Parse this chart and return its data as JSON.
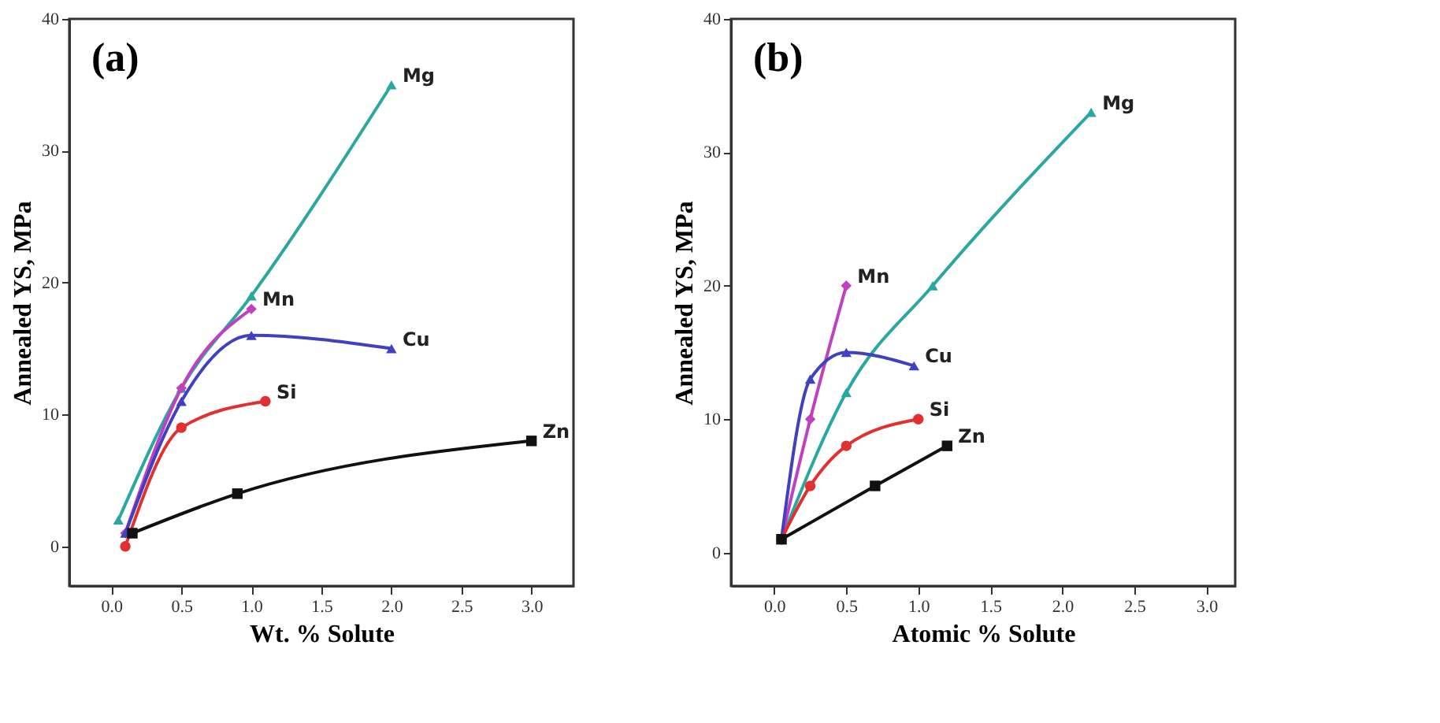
{
  "chart_data": [
    {
      "type": "line",
      "title": "(a)",
      "xlabel": "Wt. % Solute",
      "ylabel": "Annealed YS, MPa",
      "xlim": [
        -0.3,
        3.3
      ],
      "ylim": [
        -3,
        40
      ],
      "xticks": [
        {
          "value": 0,
          "label": "0.0"
        },
        {
          "value": 0.5,
          "label": "0.5"
        },
        {
          "value": 1,
          "label": "1.0"
        },
        {
          "value": 1.5,
          "label": "1.5"
        },
        {
          "value": 2,
          "label": "2.0"
        },
        {
          "value": 2.5,
          "label": "2.5"
        },
        {
          "value": 3,
          "label": "3.0"
        }
      ],
      "yticks": [
        0,
        10,
        20,
        30,
        40
      ],
      "grid": false,
      "legend": false,
      "series": [
        {
          "name": "Mg",
          "color": "#2aa7a0",
          "marker": "triangle",
          "x": [
            0.05,
            0.5,
            1.0,
            2.0
          ],
          "values": [
            2,
            12,
            19,
            35
          ]
        },
        {
          "name": "Mn",
          "color": "#c040c0",
          "marker": "diamond",
          "x": [
            0.1,
            0.5,
            1.0
          ],
          "values": [
            1,
            12,
            18
          ]
        },
        {
          "name": "Cu",
          "color": "#4040c0",
          "marker": "triangle",
          "x": [
            0.1,
            0.5,
            1.0,
            2.0
          ],
          "values": [
            1,
            11,
            16,
            15
          ]
        },
        {
          "name": "Si",
          "color": "#e03030",
          "marker": "circle",
          "x": [
            0.1,
            0.5,
            1.1
          ],
          "values": [
            0,
            9,
            11
          ]
        },
        {
          "name": "Zn",
          "color": "#111111",
          "marker": "square",
          "x": [
            0.15,
            0.9,
            3.0
          ],
          "values": [
            1,
            4,
            8
          ]
        }
      ]
    },
    {
      "type": "line",
      "title": "(b)",
      "xlabel": "Atomic % Solute",
      "ylabel": "Annealed YS, MPa",
      "xlim": [
        -0.3,
        3.2
      ],
      "ylim": [
        -2.5,
        40
      ],
      "xticks": [
        {
          "value": 0,
          "label": "0.0"
        },
        {
          "value": 0.5,
          "label": "0.5"
        },
        {
          "value": 1,
          "label": "1.0"
        },
        {
          "value": 1.5,
          "label": "1.5"
        },
        {
          "value": 2,
          "label": "2.0"
        },
        {
          "value": 2.5,
          "label": "2.5"
        },
        {
          "value": 3,
          "label": "3.0"
        }
      ],
      "yticks": [
        0,
        10,
        20,
        30,
        40
      ],
      "grid": false,
      "legend": false,
      "series": [
        {
          "name": "Mg",
          "color": "#2aa7a0",
          "marker": "triangle",
          "x": [
            0.05,
            0.5,
            1.1,
            2.2
          ],
          "values": [
            1,
            12,
            20,
            33
          ]
        },
        {
          "name": "Mn",
          "color": "#c040c0",
          "marker": "diamond",
          "x": [
            0.05,
            0.25,
            0.5
          ],
          "values": [
            1,
            10,
            20
          ]
        },
        {
          "name": "Cu",
          "color": "#4040c0",
          "marker": "triangle",
          "x": [
            0.05,
            0.25,
            0.5,
            0.97
          ],
          "values": [
            1,
            13,
            15,
            14
          ]
        },
        {
          "name": "Si",
          "color": "#e03030",
          "marker": "circle",
          "x": [
            0.05,
            0.25,
            0.5,
            1.0
          ],
          "values": [
            1,
            5,
            8,
            10
          ]
        },
        {
          "name": "Zn",
          "color": "#111111",
          "marker": "square",
          "x": [
            0.05,
            0.7,
            1.2
          ],
          "values": [
            1,
            5,
            8
          ]
        }
      ]
    }
  ]
}
